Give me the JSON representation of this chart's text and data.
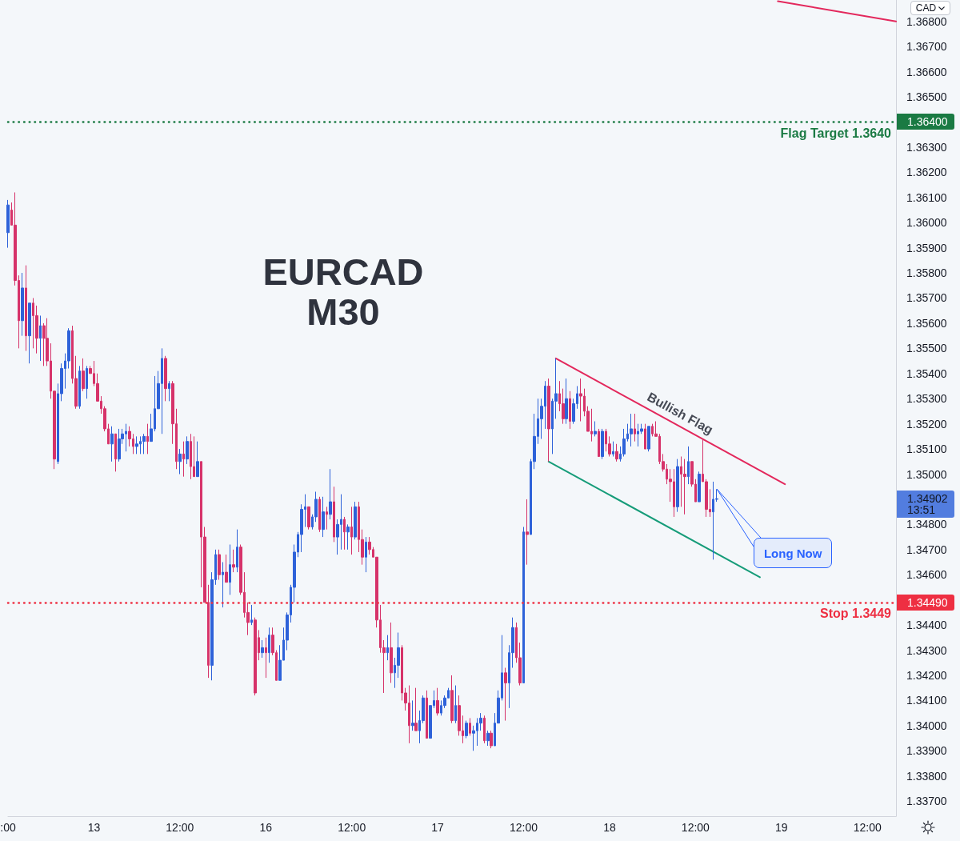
{
  "chart_data": {
    "type": "candlestick",
    "title": "EURCAD",
    "subtitle": "M30",
    "categories": [
      ":00",
      null,
      null,
      null,
      null,
      null,
      null,
      null,
      null,
      null,
      null,
      null,
      null,
      null,
      null,
      null,
      null,
      null,
      null,
      null,
      null,
      null,
      null,
      null,
      "13",
      null,
      null,
      null,
      null,
      null,
      null,
      null,
      null,
      null,
      null,
      null,
      null,
      null,
      null,
      null,
      null,
      null,
      null,
      null,
      null,
      null,
      null,
      null,
      "12:00",
      null,
      null,
      null,
      null,
      null,
      null,
      null,
      null,
      null,
      null,
      null,
      null,
      null,
      null,
      null,
      null,
      null,
      null,
      null,
      null,
      null,
      null,
      null,
      "16",
      null,
      null,
      null,
      null,
      null,
      null,
      null,
      null,
      null,
      null,
      null,
      null,
      null,
      null,
      null,
      null,
      null,
      null,
      null,
      null,
      null,
      null,
      null,
      "12:00",
      null,
      null,
      null,
      null,
      null,
      null,
      null,
      null,
      null,
      null,
      null,
      null,
      null,
      null,
      null,
      null,
      null,
      null,
      null,
      null,
      null,
      null,
      null,
      "17",
      null,
      null,
      null,
      null,
      null,
      null,
      null,
      null,
      null,
      null,
      null,
      null,
      null,
      null,
      null,
      null,
      null,
      null,
      null,
      null,
      null,
      null,
      null,
      "12:00",
      null,
      null,
      null,
      null,
      null,
      null,
      null,
      null,
      null,
      null,
      null,
      null,
      null,
      null,
      null,
      null,
      null,
      null,
      null,
      null,
      null,
      null,
      null,
      "18",
      null,
      null,
      null,
      null,
      null,
      null,
      null,
      null,
      null,
      null,
      null,
      null,
      null,
      null,
      null,
      null,
      null,
      null,
      null,
      null,
      null,
      null,
      null,
      "12:00",
      null,
      null,
      null,
      null,
      null,
      null,
      null,
      null,
      null,
      null,
      null,
      null,
      null,
      null,
      null,
      null,
      null,
      null,
      null,
      null,
      null,
      null,
      null,
      "19",
      null,
      null,
      null,
      null,
      null,
      null,
      null,
      null,
      null,
      null,
      null,
      null,
      null,
      null,
      null,
      null,
      null,
      null,
      null,
      null,
      null,
      null,
      null,
      "12:00",
      null,
      null,
      null,
      null,
      null,
      null,
      null,
      null
    ],
    "ohlc": [
      [
        1.3596,
        1.3609,
        1.359,
        1.3607
      ],
      [
        1.3605,
        1.3608,
        1.3599,
        1.3599
      ],
      [
        1.3599,
        1.3612,
        1.3575,
        1.3577
      ],
      [
        1.3577,
        1.3579,
        1.355,
        1.3561
      ],
      [
        1.3561,
        1.358,
        1.3555,
        1.3574
      ],
      [
        1.3574,
        1.3583,
        1.3549,
        1.3555
      ],
      [
        1.3555,
        1.3568,
        1.3544,
        1.3568
      ],
      [
        1.3568,
        1.357,
        1.355,
        1.3563
      ],
      [
        1.3563,
        1.3567,
        1.3548,
        1.3554
      ],
      [
        1.3554,
        1.3563,
        1.3545,
        1.3559
      ],
      [
        1.3559,
        1.356,
        1.3543,
        1.3554
      ],
      [
        1.3554,
        1.3562,
        1.3543,
        1.3545
      ],
      [
        1.3545,
        1.3552,
        1.353,
        1.3533
      ],
      [
        1.3533,
        1.3533,
        1.3502,
        1.3506
      ],
      [
        1.3505,
        1.3536,
        1.3504,
        1.3532
      ],
      [
        1.3532,
        1.3544,
        1.3529,
        1.3542
      ],
      [
        1.3542,
        1.3548,
        1.3534,
        1.3545
      ],
      [
        1.3545,
        1.3558,
        1.3542,
        1.3557
      ],
      [
        1.3557,
        1.3559,
        1.3536,
        1.3538
      ],
      [
        1.3538,
        1.3547,
        1.3526,
        1.3527
      ],
      [
        1.3527,
        1.3543,
        1.3526,
        1.3541
      ],
      [
        1.3541,
        1.3546,
        1.3533,
        1.3534
      ],
      [
        1.3534,
        1.3543,
        1.353,
        1.3542
      ],
      [
        1.3542,
        1.3543,
        1.354,
        1.354
      ],
      [
        1.354,
        1.3545,
        1.3535,
        1.3536
      ],
      [
        1.3536,
        1.354,
        1.3529,
        1.3529
      ],
      [
        1.3529,
        1.3531,
        1.3524,
        1.3526
      ],
      [
        1.3526,
        1.3527,
        1.3517,
        1.3518
      ],
      [
        1.3518,
        1.352,
        1.3512,
        1.3512
      ],
      [
        1.3512,
        1.3519,
        1.3505,
        1.3516
      ],
      [
        1.3516,
        1.3516,
        1.3501,
        1.3506
      ],
      [
        1.3506,
        1.3518,
        1.3505,
        1.3514
      ],
      [
        1.3514,
        1.3518,
        1.3512,
        1.3516
      ],
      [
        1.3516,
        1.352,
        1.3509,
        1.3517
      ],
      [
        1.3517,
        1.3519,
        1.3511,
        1.3514
      ],
      [
        1.3514,
        1.3516,
        1.3508,
        1.3511
      ],
      [
        1.3511,
        1.3515,
        1.3508,
        1.3512
      ],
      [
        1.3512,
        1.3515,
        1.3508,
        1.3513
      ],
      [
        1.3513,
        1.3516,
        1.3508,
        1.3515
      ],
      [
        1.3515,
        1.352,
        1.3508,
        1.3513
      ],
      [
        1.3513,
        1.3524,
        1.3513,
        1.3518
      ],
      [
        1.3518,
        1.3539,
        1.3517,
        1.3526
      ],
      [
        1.3526,
        1.3541,
        1.3526,
        1.3536
      ],
      [
        1.3536,
        1.355,
        1.3516,
        1.3546
      ],
      [
        1.3546,
        1.3547,
        1.3529,
        1.3534
      ],
      [
        1.3534,
        1.3537,
        1.3529,
        1.3536
      ],
      [
        1.3536,
        1.3537,
        1.3512,
        1.352
      ],
      [
        1.352,
        1.3526,
        1.3502,
        1.3505
      ],
      [
        1.3505,
        1.351,
        1.35,
        1.3508
      ],
      [
        1.3508,
        1.3513,
        1.3499,
        1.3506
      ],
      [
        1.3506,
        1.3515,
        1.3504,
        1.3513
      ],
      [
        1.3513,
        1.3516,
        1.3498,
        1.3503
      ],
      [
        1.3503,
        1.3515,
        1.3499,
        1.3499
      ],
      [
        1.3499,
        1.3513,
        1.3499,
        1.3505
      ],
      [
        1.3505,
        1.3505,
        1.3455,
        1.3475
      ],
      [
        1.3475,
        1.3479,
        1.3449,
        1.3449
      ],
      [
        1.3449,
        1.3456,
        1.3419,
        1.3424
      ],
      [
        1.3424,
        1.3461,
        1.3418,
        1.3458
      ],
      [
        1.3458,
        1.347,
        1.3456,
        1.3468
      ],
      [
        1.3468,
        1.347,
        1.3458,
        1.346
      ],
      [
        1.346,
        1.3465,
        1.3447,
        1.3461
      ],
      [
        1.3461,
        1.3468,
        1.3457,
        1.3457
      ],
      [
        1.3457,
        1.3472,
        1.3452,
        1.3464
      ],
      [
        1.3464,
        1.347,
        1.3461,
        1.3463
      ],
      [
        1.3463,
        1.3478,
        1.3461,
        1.3471
      ],
      [
        1.3471,
        1.3472,
        1.3452,
        1.3453
      ],
      [
        1.3453,
        1.3461,
        1.3443,
        1.3445
      ],
      [
        1.3445,
        1.3449,
        1.3436,
        1.3441
      ],
      [
        1.3441,
        1.3448,
        1.344,
        1.3442
      ],
      [
        1.3442,
        1.3443,
        1.3412,
        1.3413
      ],
      [
        1.3435,
        1.3438,
        1.3426,
        1.3429
      ],
      [
        1.3429,
        1.3434,
        1.3427,
        1.3431
      ],
      [
        1.3431,
        1.3435,
        1.3419,
        1.3429
      ],
      [
        1.3429,
        1.3439,
        1.3425,
        1.3436
      ],
      [
        1.3436,
        1.3439,
        1.3428,
        1.3429
      ],
      [
        1.3429,
        1.343,
        1.3418,
        1.3418
      ],
      [
        1.3418,
        1.3432,
        1.3418,
        1.3426
      ],
      [
        1.3426,
        1.3439,
        1.3426,
        1.3434
      ],
      [
        1.3434,
        1.3445,
        1.343,
        1.3444
      ],
      [
        1.3444,
        1.3456,
        1.3441,
        1.3455
      ],
      [
        1.3455,
        1.3472,
        1.3449,
        1.3469
      ],
      [
        1.3469,
        1.3477,
        1.3467,
        1.3476
      ],
      [
        1.3476,
        1.3488,
        1.3469,
        1.3486
      ],
      [
        1.3486,
        1.3492,
        1.3479,
        1.3487
      ],
      [
        1.3487,
        1.3487,
        1.3478,
        1.3479
      ],
      [
        1.3479,
        1.3484,
        1.3478,
        1.3483
      ],
      [
        1.3483,
        1.3493,
        1.3481,
        1.349
      ],
      [
        1.349,
        1.3491,
        1.3477,
        1.3478
      ],
      [
        1.3478,
        1.3491,
        1.3475,
        1.3485
      ],
      [
        1.3485,
        1.3487,
        1.3478,
        1.3484
      ],
      [
        1.3484,
        1.3502,
        1.3482,
        1.3489
      ],
      [
        1.3489,
        1.3495,
        1.3473,
        1.3475
      ],
      [
        1.3475,
        1.3482,
        1.3468,
        1.348
      ],
      [
        1.348,
        1.3492,
        1.347,
        1.3482
      ],
      [
        1.3482,
        1.3483,
        1.347,
        1.3477
      ],
      [
        1.3477,
        1.348,
        1.347,
        1.3479
      ],
      [
        1.3479,
        1.3487,
        1.3468,
        1.3475
      ],
      [
        1.3475,
        1.3489,
        1.3474,
        1.3487
      ],
      [
        1.3487,
        1.3489,
        1.3469,
        1.3474
      ],
      [
        1.3474,
        1.3478,
        1.3464,
        1.3467
      ],
      [
        1.3467,
        1.3475,
        1.3461,
        1.3473
      ],
      [
        1.3473,
        1.3475,
        1.3468,
        1.347
      ],
      [
        1.347,
        1.3471,
        1.3467,
        1.3467
      ],
      [
        1.3467,
        1.3467,
        1.3439,
        1.3442
      ],
      [
        1.3442,
        1.3448,
        1.3429,
        1.3431
      ],
      [
        1.3431,
        1.3434,
        1.3413,
        1.3429
      ],
      [
        1.3429,
        1.3436,
        1.3426,
        1.3431
      ],
      [
        1.3431,
        1.3441,
        1.3417,
        1.3421
      ],
      [
        1.3421,
        1.3427,
        1.3415,
        1.3424
      ],
      [
        1.3424,
        1.3437,
        1.3419,
        1.3431
      ],
      [
        1.3431,
        1.3432,
        1.341,
        1.3413
      ],
      [
        1.3413,
        1.3415,
        1.3406,
        1.3409
      ],
      [
        1.3409,
        1.3416,
        1.3393,
        1.34
      ],
      [
        1.34,
        1.341,
        1.3398,
        1.3401
      ],
      [
        1.3401,
        1.3415,
        1.3398,
        1.3398
      ],
      [
        1.3398,
        1.3406,
        1.3393,
        1.3402
      ],
      [
        1.3402,
        1.3412,
        1.3401,
        1.3411
      ],
      [
        1.3411,
        1.3414,
        1.3395,
        1.3395
      ],
      [
        1.3395,
        1.3408,
        1.3395,
        1.3408
      ],
      [
        1.3408,
        1.3414,
        1.3407,
        1.341
      ],
      [
        1.341,
        1.3415,
        1.3404,
        1.3405
      ],
      [
        1.3405,
        1.341,
        1.3404,
        1.3408
      ],
      [
        1.3408,
        1.3412,
        1.3407,
        1.3411
      ],
      [
        1.3411,
        1.3415,
        1.3411,
        1.3414
      ],
      [
        1.3414,
        1.342,
        1.3401,
        1.3402
      ],
      [
        1.3402,
        1.3416,
        1.3401,
        1.3408
      ],
      [
        1.3408,
        1.3412,
        1.3396,
        1.3398
      ],
      [
        1.3398,
        1.3404,
        1.3393,
        1.3396
      ],
      [
        1.3396,
        1.3402,
        1.3395,
        1.3401
      ],
      [
        1.3401,
        1.3403,
        1.3396,
        1.3397
      ],
      [
        1.3397,
        1.34,
        1.339,
        1.3398
      ],
      [
        1.3398,
        1.3403,
        1.3392,
        1.3401
      ],
      [
        1.3401,
        1.3405,
        1.3398,
        1.3403
      ],
      [
        1.3403,
        1.3404,
        1.3393,
        1.3394
      ],
      [
        1.3394,
        1.3398,
        1.3392,
        1.3397
      ],
      [
        1.3397,
        1.3398,
        1.3391,
        1.3392
      ],
      [
        1.3392,
        1.3405,
        1.3392,
        1.3401
      ],
      [
        1.3401,
        1.3414,
        1.3401,
        1.3411
      ],
      [
        1.3411,
        1.3436,
        1.341,
        1.3421
      ],
      [
        1.3421,
        1.3423,
        1.3402,
        1.3417
      ],
      [
        1.3417,
        1.3432,
        1.3407,
        1.3429
      ],
      [
        1.3429,
        1.3443,
        1.3423,
        1.3439
      ],
      [
        1.3439,
        1.3441,
        1.3425,
        1.3427
      ],
      [
        1.3427,
        1.3433,
        1.3416,
        1.3417
      ],
      [
        1.3417,
        1.3479,
        1.3417,
        1.3477
      ],
      [
        1.3477,
        1.349,
        1.3464,
        1.3476
      ],
      [
        1.3476,
        1.3506,
        1.3476,
        1.3505
      ],
      [
        1.3505,
        1.3524,
        1.3502,
        1.3515
      ],
      [
        1.3515,
        1.353,
        1.3512,
        1.3522
      ],
      [
        1.3522,
        1.353,
        1.3514,
        1.3527
      ],
      [
        1.3527,
        1.3537,
        1.3518,
        1.3535
      ],
      [
        1.3535,
        1.3538,
        1.3505,
        1.3518
      ],
      [
        1.3518,
        1.353,
        1.3508,
        1.3529
      ],
      [
        1.3529,
        1.3546,
        1.3522,
        1.3532
      ],
      [
        1.3532,
        1.3537,
        1.3525,
        1.3528
      ],
      [
        1.3528,
        1.3534,
        1.352,
        1.3522
      ],
      [
        1.3522,
        1.3538,
        1.352,
        1.353
      ],
      [
        1.353,
        1.3533,
        1.3518,
        1.3521
      ],
      [
        1.3521,
        1.353,
        1.352,
        1.3528
      ],
      [
        1.3528,
        1.3535,
        1.3526,
        1.3532
      ],
      [
        1.3532,
        1.3538,
        1.3521,
        1.3531
      ],
      [
        1.3531,
        1.3534,
        1.3523,
        1.3525
      ],
      [
        1.3525,
        1.3527,
        1.3517,
        1.3517
      ],
      [
        1.3517,
        1.3526,
        1.3513,
        1.3516
      ],
      [
        1.3516,
        1.3521,
        1.3515,
        1.3517
      ],
      [
        1.3517,
        1.3518,
        1.3507,
        1.3507
      ],
      [
        1.3507,
        1.3518,
        1.3506,
        1.3517
      ],
      [
        1.3517,
        1.3518,
        1.3509,
        1.3512
      ],
      [
        1.3512,
        1.3515,
        1.3507,
        1.3508
      ],
      [
        1.3508,
        1.3513,
        1.3507,
        1.3509
      ],
      [
        1.3509,
        1.3512,
        1.3505,
        1.3506
      ],
      [
        1.3506,
        1.3511,
        1.3505,
        1.3508
      ],
      [
        1.3508,
        1.3518,
        1.3507,
        1.3514
      ],
      [
        1.3514,
        1.352,
        1.3513,
        1.3516
      ],
      [
        1.3516,
        1.3524,
        1.3511,
        1.3518
      ],
      [
        1.3518,
        1.3524,
        1.3513,
        1.3516
      ],
      [
        1.3516,
        1.352,
        1.3511,
        1.3517
      ],
      [
        1.3517,
        1.352,
        1.3516,
        1.3518
      ],
      [
        1.3518,
        1.352,
        1.351,
        1.351
      ],
      [
        1.351,
        1.3519,
        1.3509,
        1.3519
      ],
      [
        1.3519,
        1.352,
        1.3515,
        1.3516
      ],
      [
        1.3516,
        1.3521,
        1.3515,
        1.3515
      ],
      [
        1.3515,
        1.3516,
        1.3504,
        1.3505
      ],
      [
        1.3505,
        1.3508,
        1.3501,
        1.3502
      ],
      [
        1.3502,
        1.3504,
        1.3496,
        1.3498
      ],
      [
        1.3498,
        1.3502,
        1.3489,
        1.3497
      ],
      [
        1.3497,
        1.3502,
        1.3483,
        1.3487
      ],
      [
        1.3487,
        1.3506,
        1.3485,
        1.3503
      ],
      [
        1.3503,
        1.3507,
        1.3487,
        1.35
      ],
      [
        1.35,
        1.3506,
        1.3484,
        1.3499
      ],
      [
        1.3499,
        1.3511,
        1.3496,
        1.3505
      ],
      [
        1.3505,
        1.3505,
        1.3495,
        1.3496
      ],
      [
        1.3496,
        1.3498,
        1.3489,
        1.3489
      ],
      [
        1.3489,
        1.3501,
        1.3489,
        1.35
      ],
      [
        1.35,
        1.3514,
        1.3497,
        1.3497
      ],
      [
        1.3497,
        1.3498,
        1.3483,
        1.3486
      ],
      [
        1.3486,
        1.3494,
        1.3483,
        1.3485
      ],
      [
        1.3485,
        1.3497,
        1.3466,
        1.349
      ],
      [
        1.349,
        1.3494,
        1.3489,
        1.34902
      ],
      null,
      null,
      null,
      null,
      null,
      null,
      null,
      null,
      null,
      null,
      null,
      null,
      null,
      null,
      null,
      null,
      null,
      null,
      null,
      null,
      null,
      null,
      null,
      null,
      null,
      null,
      null,
      null,
      null,
      null,
      null,
      null,
      null,
      null,
      null,
      null,
      null,
      null,
      null,
      null,
      null,
      null,
      null,
      null,
      null,
      null,
      null,
      null,
      null,
      null
    ],
    "colors": [
      "#2e62d9",
      "#d6336a",
      "#d6336a",
      "#d6336a",
      "#2e62d9",
      "#d6336a",
      "#2e62d9",
      "#d6336a",
      "#d6336a",
      "#2e62d9",
      "#d6336a",
      "#d6336a",
      "#d6336a",
      "#d6336a",
      "#2e62d9",
      "#2e62d9",
      "#2e62d9",
      "#2e62d9",
      "#d6336a",
      "#d6336a",
      "#2e62d9",
      "#d6336a",
      "#2e62d9",
      "#d6336a",
      "#d6336a",
      "#d6336a",
      "#d6336a",
      "#d6336a",
      "#d6336a",
      "#2e62d9",
      "#d6336a",
      "#2e62d9",
      "#2e62d9",
      "#2e62d9",
      "#d6336a",
      "#d6336a",
      "#2e62d9",
      "#2e62d9",
      "#2e62d9",
      "#d6336a",
      "#2e62d9",
      "#2e62d9",
      "#2e62d9",
      "#2e62d9",
      "#d6336a",
      "#2e62d9",
      "#d6336a",
      "#d6336a",
      "#2e62d9",
      "#d6336a",
      "#2e62d9",
      "#d6336a",
      "#d6336a",
      "#2e62d9",
      "#d6336a",
      "#d6336a",
      "#d6336a",
      "#2e62d9",
      "#2e62d9",
      "#d6336a",
      "#2e62d9",
      "#d6336a",
      "#2e62d9",
      "#d6336a",
      "#2e62d9",
      "#d6336a",
      "#d6336a",
      "#d6336a",
      "#2e62d9",
      "#d6336a",
      "#d6336a",
      "#2e62d9",
      "#d6336a",
      "#2e62d9",
      "#d6336a",
      "#d6336a",
      "#2e62d9",
      "#2e62d9",
      "#2e62d9",
      "#2e62d9",
      "#2e62d9",
      "#2e62d9",
      "#2e62d9",
      "#2e62d9",
      "#d6336a",
      "#2e62d9",
      "#2e62d9",
      "#d6336a",
      "#2e62d9",
      "#d6336a",
      "#2e62d9",
      "#d6336a",
      "#2e62d9",
      "#2e62d9",
      "#d6336a",
      "#2e62d9",
      "#d6336a",
      "#2e62d9",
      "#d6336a",
      "#d6336a",
      "#2e62d9",
      "#d6336a",
      "#d6336a",
      "#d6336a",
      "#d6336a",
      "#d6336a",
      "#2e62d9",
      "#d6336a",
      "#2e62d9",
      "#2e62d9",
      "#d6336a",
      "#d6336a",
      "#d6336a",
      "#2e62d9",
      "#d6336a",
      "#2e62d9",
      "#2e62d9",
      "#d6336a",
      "#2e62d9",
      "#2e62d9",
      "#d6336a",
      "#2e62d9",
      "#2e62d9",
      "#2e62d9",
      "#d6336a",
      "#2e62d9",
      "#d6336a",
      "#d6336a",
      "#2e62d9",
      "#d6336a",
      "#2e62d9",
      "#2e62d9",
      "#2e62d9",
      "#d6336a",
      "#2e62d9",
      "#d6336a",
      "#2e62d9",
      "#2e62d9",
      "#2e62d9",
      "#d6336a",
      "#2e62d9",
      "#2e62d9",
      "#d6336a",
      "#d6336a",
      "#2e62d9",
      "#d6336a",
      "#2e62d9",
      "#2e62d9",
      "#2e62d9",
      "#2e62d9",
      "#2e62d9",
      "#d6336a",
      "#2e62d9",
      "#2e62d9",
      "#d6336a",
      "#d6336a",
      "#2e62d9",
      "#d6336a",
      "#2e62d9",
      "#2e62d9",
      "#d6336a",
      "#d6336a",
      "#d6336a",
      "#d6336a",
      "#2e62d9",
      "#d6336a",
      "#2e62d9",
      "#d6336a",
      "#d6336a",
      "#2e62d9",
      "#d6336a",
      "#2e62d9",
      "#2e62d9",
      "#2e62d9",
      "#2e62d9",
      "#d6336a",
      "#2e62d9",
      "#2e62d9",
      "#d6336a",
      "#2e62d9",
      "#d6336a",
      "#d6336a",
      "#d6336a",
      "#d6336a",
      "#d6336a",
      "#d6336a",
      "#d6336a",
      "#2e62d9",
      "#d6336a",
      "#d6336a",
      "#2e62d9",
      "#d6336a",
      "#d6336a",
      "#2e62d9",
      "#d6336a",
      "#d6336a",
      "#d6336a",
      "#2e62d9",
      "#2e62d9",
      null,
      null,
      null,
      null,
      null,
      null,
      null,
      null,
      null,
      null,
      null,
      null,
      null,
      null,
      null,
      null,
      null,
      null,
      null,
      null,
      null,
      null,
      null,
      null,
      null,
      null,
      null,
      null,
      null,
      null,
      null,
      null,
      null,
      null,
      null,
      null,
      null,
      null,
      null,
      null,
      null,
      null,
      null,
      null,
      null,
      null,
      null,
      null,
      null,
      null
    ],
    "series": [
      {
        "type": "line",
        "color": "#e3285c",
        "values": [
          null,
          null,
          null,
          null,
          null,
          null,
          null,
          null,
          null,
          null,
          null,
          null,
          null,
          null,
          null,
          null,
          null,
          null,
          null,
          null,
          null,
          null,
          null,
          null,
          null,
          null,
          null,
          null,
          null,
          null,
          null,
          null,
          null,
          null,
          null,
          null,
          null,
          null,
          null,
          null,
          null,
          null,
          null,
          null,
          null,
          null,
          null,
          null,
          null,
          null,
          null,
          null,
          null,
          null,
          null,
          null,
          null,
          null,
          null,
          null,
          null,
          null,
          null,
          null,
          null,
          null,
          null,
          null,
          null,
          null,
          null,
          null,
          null,
          null,
          null,
          null,
          null,
          null,
          null,
          null,
          null,
          null,
          null,
          null,
          null,
          null,
          null,
          null,
          null,
          null,
          null,
          null,
          null,
          null,
          null,
          null,
          null,
          null,
          null,
          null,
          null,
          null,
          null,
          null,
          null,
          null,
          null,
          null,
          null,
          null,
          null,
          null,
          null,
          null,
          null,
          null,
          null,
          null,
          null,
          null,
          null,
          null,
          null,
          null,
          null,
          null,
          null,
          null,
          null,
          null,
          null,
          null,
          null,
          null,
          null,
          null,
          null,
          null,
          null,
          null,
          null,
          null,
          null,
          null,
          null,
          null,
          null,
          null,
          null,
          null,
          null,
          null,
          null,
          1.3546,
          null,
          null,
          null,
          null,
          null,
          null,
          null,
          null,
          null,
          null,
          null,
          null,
          null,
          null,
          null,
          null,
          null,
          null,
          null,
          null,
          null,
          null,
          null,
          null,
          null,
          null,
          null,
          null,
          null,
          null,
          null,
          null,
          null,
          null,
          null,
          null,
          null,
          null,
          null,
          null,
          null,
          null,
          null,
          null,
          null,
          null,
          null,
          null,
          null,
          null,
          null,
          null,
          null,
          null,
          null,
          null,
          null,
          null,
          null,
          null,
          null,
          null,
          null,
          1.3496,
          null,
          null,
          null,
          null,
          null,
          null,
          null,
          null,
          null,
          null,
          null,
          null,
          null,
          null,
          null,
          null,
          null,
          null,
          null,
          null,
          null,
          null,
          null,
          null,
          null,
          null,
          null,
          null,
          null,
          null,
          null
        ]
      },
      {
        "type": "line",
        "color": "#169c79",
        "values": [
          null,
          null,
          null,
          null,
          null,
          null,
          null,
          null,
          null,
          null,
          null,
          null,
          null,
          null,
          null,
          null,
          null,
          null,
          null,
          null,
          null,
          null,
          null,
          null,
          null,
          null,
          null,
          null,
          null,
          null,
          null,
          null,
          null,
          null,
          null,
          null,
          null,
          null,
          null,
          null,
          null,
          null,
          null,
          null,
          null,
          null,
          null,
          null,
          null,
          null,
          null,
          null,
          null,
          null,
          null,
          null,
          null,
          null,
          null,
          null,
          null,
          null,
          null,
          null,
          null,
          null,
          null,
          null,
          null,
          null,
          null,
          null,
          null,
          null,
          null,
          null,
          null,
          null,
          null,
          null,
          null,
          null,
          null,
          null,
          null,
          null,
          null,
          null,
          null,
          null,
          null,
          null,
          null,
          null,
          null,
          null,
          null,
          null,
          null,
          null,
          null,
          null,
          null,
          null,
          null,
          null,
          null,
          null,
          null,
          null,
          null,
          null,
          null,
          null,
          null,
          null,
          null,
          null,
          null,
          null,
          null,
          null,
          null,
          null,
          null,
          null,
          null,
          null,
          null,
          null,
          null,
          null,
          null,
          null,
          null,
          null,
          null,
          null,
          null,
          null,
          null,
          null,
          null,
          null,
          null,
          null,
          null,
          null,
          null,
          null,
          null,
          1.3505,
          null,
          null,
          null,
          null,
          null,
          null,
          null,
          null,
          null,
          null,
          null,
          null,
          null,
          null,
          null,
          null,
          null,
          null,
          null,
          null,
          null,
          null,
          null,
          null,
          null,
          null,
          null,
          null,
          null,
          null,
          null,
          null,
          null,
          null,
          null,
          null,
          null,
          null,
          null,
          null,
          null,
          null,
          null,
          null,
          null,
          null,
          null,
          null,
          null,
          null,
          null,
          null,
          null,
          null,
          null,
          null,
          null,
          null,
          1.3459,
          null,
          null,
          null,
          null,
          null,
          null,
          null,
          null,
          null,
          null,
          null,
          null,
          null,
          null,
          null,
          null,
          null,
          null,
          null,
          null,
          null,
          null,
          null,
          null,
          null,
          null,
          null,
          null,
          null,
          null,
          null,
          null,
          null,
          null,
          null,
          null,
          null,
          null
        ]
      },
      {
        "type": "line",
        "color": "#e3285c",
        "values": [
          null,
          null,
          null,
          null,
          null,
          null,
          null,
          null,
          null,
          null,
          null,
          null,
          null,
          null,
          null,
          null,
          null,
          null,
          null,
          null,
          null,
          null,
          null,
          null,
          null,
          null,
          null,
          null,
          null,
          null,
          null,
          null,
          null,
          null,
          null,
          null,
          null,
          null,
          null,
          null,
          null,
          null,
          null,
          null,
          null,
          null,
          null,
          null,
          null,
          null,
          null,
          null,
          null,
          null,
          null,
          null,
          null,
          null,
          null,
          null,
          null,
          null,
          null,
          null,
          null,
          null,
          null,
          null,
          null,
          null,
          null,
          null,
          null,
          null,
          null,
          null,
          null,
          null,
          null,
          null,
          null,
          null,
          null,
          null,
          null,
          null,
          null,
          null,
          null,
          null,
          null,
          null,
          null,
          null,
          null,
          null,
          null,
          null,
          null,
          null,
          null,
          null,
          null,
          null,
          null,
          null,
          null,
          null,
          null,
          null,
          null,
          null,
          null,
          null,
          null,
          null,
          null,
          null,
          null,
          null,
          null,
          null,
          null,
          null,
          null,
          null,
          null,
          null,
          null,
          null,
          null,
          null,
          null,
          null,
          null,
          null,
          null,
          null,
          null,
          null,
          null,
          null,
          null,
          null,
          null,
          null,
          null,
          null,
          null,
          null,
          null,
          null,
          null,
          null,
          null,
          null,
          null,
          null,
          null,
          null,
          null,
          null,
          null,
          null,
          null,
          null,
          null,
          null,
          null,
          null,
          null,
          null,
          null,
          null,
          null,
          null,
          null,
          null,
          null,
          null,
          null,
          null,
          null,
          null,
          null,
          null,
          null,
          null,
          null,
          null,
          null,
          null,
          null,
          null,
          null,
          null,
          null,
          null,
          null,
          null,
          null,
          null,
          null,
          null,
          null,
          null,
          null,
          null,
          null,
          null,
          null,
          null,
          null,
          null,
          null,
          1.3688,
          null,
          null,
          null,
          null,
          null,
          null,
          null,
          null,
          null,
          null,
          null,
          null,
          null,
          null,
          null,
          null,
          null,
          null,
          null,
          null,
          null,
          null,
          null,
          null,
          null,
          null,
          null,
          null,
          null,
          null,
          null,
          null,
          1.368
        ]
      }
    ],
    "ylim": [
      1.3364,
      1.36885
    ],
    "yticks": [
      {
        "value": 1.337,
        "label": "1.33700"
      },
      {
        "value": 1.338,
        "label": "1.33800"
      },
      {
        "value": 1.339,
        "label": "1.33900"
      },
      {
        "value": 1.34,
        "label": "1.34000"
      },
      {
        "value": 1.341,
        "label": "1.34100"
      },
      {
        "value": 1.342,
        "label": "1.34200"
      },
      {
        "value": 1.343,
        "label": "1.34300"
      },
      {
        "value": 1.344,
        "label": "1.34400"
      },
      {
        "value": 1.346,
        "label": "1.34600"
      },
      {
        "value": 1.347,
        "label": "1.34700"
      },
      {
        "value": 1.348,
        "label": "1.34800"
      },
      {
        "value": 1.35,
        "label": "1.35000"
      },
      {
        "value": 1.351,
        "label": "1.35100"
      },
      {
        "value": 1.352,
        "label": "1.35200"
      },
      {
        "value": 1.353,
        "label": "1.35300"
      },
      {
        "value": 1.354,
        "label": "1.35400"
      },
      {
        "value": 1.355,
        "label": "1.35500"
      },
      {
        "value": 1.356,
        "label": "1.35600"
      },
      {
        "value": 1.357,
        "label": "1.35700"
      },
      {
        "value": 1.358,
        "label": "1.35800"
      },
      {
        "value": 1.359,
        "label": "1.35900"
      },
      {
        "value": 1.36,
        "label": "1.36000"
      },
      {
        "value": 1.361,
        "label": "1.36100"
      },
      {
        "value": 1.362,
        "label": "1.36200"
      },
      {
        "value": 1.363,
        "label": "1.36300"
      },
      {
        "value": 1.365,
        "label": "1.36500"
      },
      {
        "value": 1.366,
        "label": "1.36600"
      },
      {
        "value": 1.367,
        "label": "1.36700"
      },
      {
        "value": 1.368,
        "label": "1.36800"
      }
    ],
    "ref_lines": [
      {
        "axis": "y",
        "value": 1.364,
        "label": "Flag Target 1.3640",
        "color": "#1a7a43",
        "line_style": "dotted"
      },
      {
        "axis": "y",
        "value": 1.3449,
        "label": "Stop 1.3449",
        "color": "#ee2f42",
        "line_style": "dotted"
      }
    ],
    "annotations": [
      "Long Now",
      "Bullish Flag",
      "1.36400",
      "1.34490",
      "1.34902",
      "13:51",
      "CAD"
    ]
  }
}
